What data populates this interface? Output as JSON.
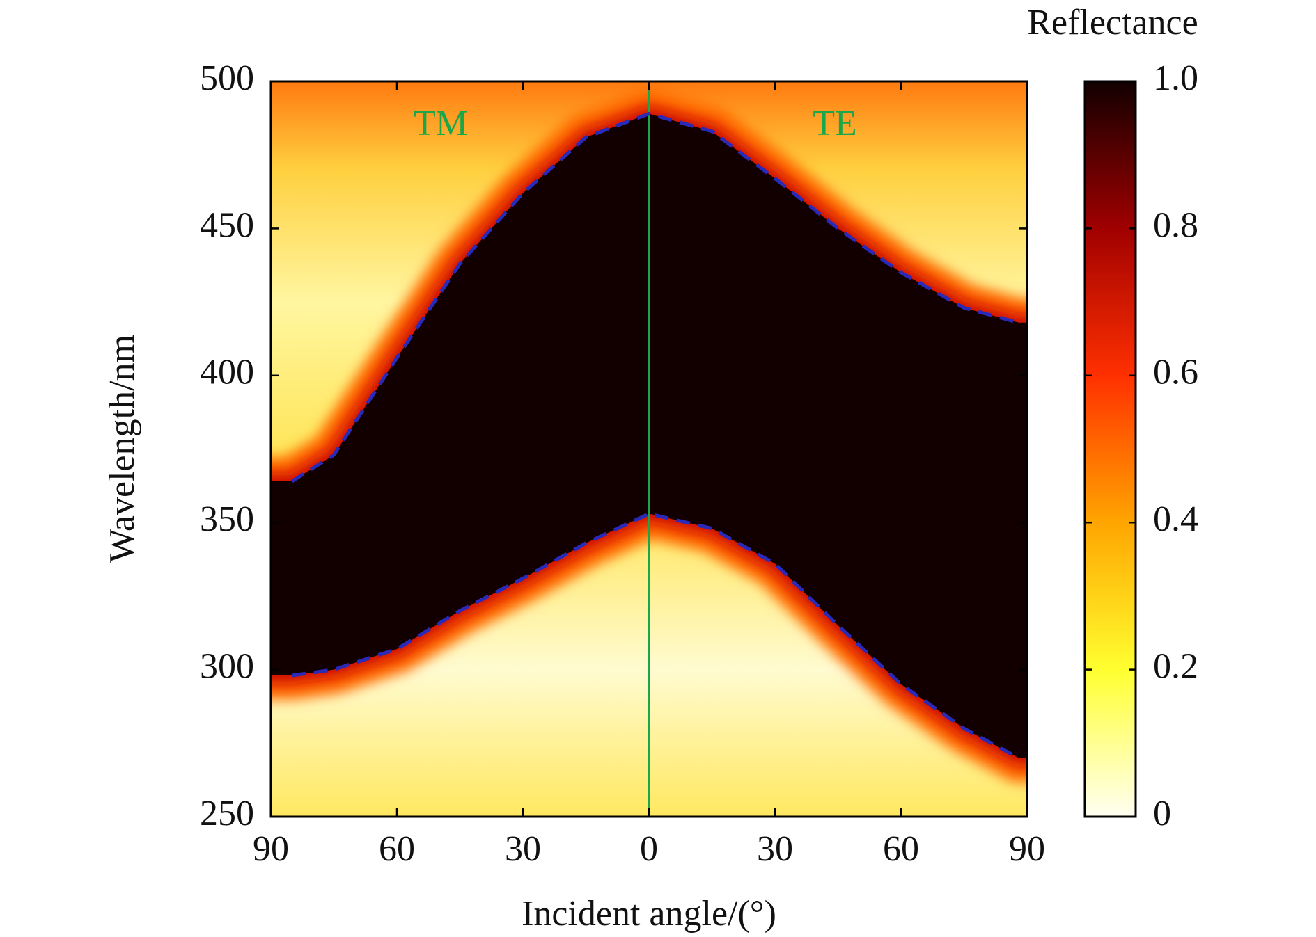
{
  "chart_data": {
    "type": "heatmap",
    "xlabel": "Incident angle/(°)",
    "ylabel": "Wavelength/nm",
    "annotations": [
      "TM",
      "TE"
    ],
    "annotation_color": "#1aa64a",
    "x": [
      -85,
      -75,
      -60,
      -45,
      -30,
      -15,
      0,
      15,
      30,
      45,
      60,
      75,
      88
    ],
    "series": [
      {
        "color": "#2a2ab8",
        "values": [
          364,
          373,
          406,
          438,
          462,
          481,
          489,
          483,
          467,
          450,
          435,
          423,
          418
        ]
      },
      {
        "color": "#2a2ab8",
        "values": [
          298,
          300,
          307,
          320,
          331,
          343,
          353,
          348,
          336,
          315,
          295,
          280,
          270
        ]
      }
    ],
    "divider": {
      "x": 0,
      "color": "#1aa64a"
    },
    "xlim": [
      -90,
      90
    ],
    "xticks": [
      {
        "value": -90,
        "label": "90"
      },
      {
        "value": -60,
        "label": "60"
      },
      {
        "value": -30,
        "label": "30"
      },
      0,
      30,
      60,
      90
    ],
    "ylim": [
      250,
      500
    ],
    "yticks": [
      250,
      300,
      350,
      400,
      450,
      500
    ],
    "colorbar": {
      "label": "Reflectance",
      "lim": [
        0,
        1
      ],
      "ticks": [
        0,
        0.2,
        0.4,
        0.6,
        0.8,
        {
          "value": 1,
          "label": "1.0"
        }
      ],
      "colormap": [
        "#fffff2",
        "#ffff30",
        "#ffa500",
        "#ff3000",
        "#a00000",
        "#120000"
      ]
    }
  }
}
